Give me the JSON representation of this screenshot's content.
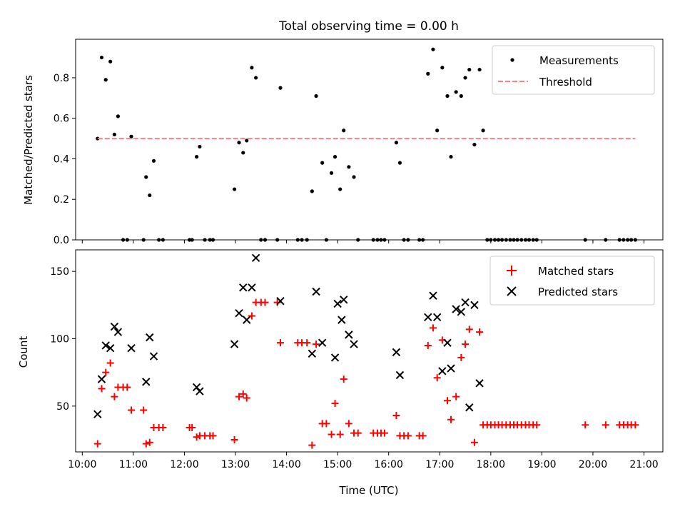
{
  "figure": {
    "title": "Total observing time = 0.00 h",
    "xlabel": "Time (UTC)",
    "xticks": [
      "10:00",
      "11:00",
      "12:00",
      "13:00",
      "14:00",
      "15:00",
      "16:00",
      "17:00",
      "18:00",
      "19:00",
      "20:00",
      "21:00"
    ]
  },
  "chart_data": [
    {
      "type": "scatter",
      "ylabel": "Matched/Predicted stars",
      "ylim": [
        0,
        0.99
      ],
      "yticks": [
        0.0,
        0.2,
        0.4,
        0.6,
        0.8
      ],
      "xlim_hours": [
        9.87,
        21.37
      ],
      "grid": false,
      "legend_position": "top-right",
      "series": [
        {
          "name": "Measurements",
          "kind": "points",
          "color": "#000000",
          "x": [
            10.3,
            10.38,
            10.46,
            10.55,
            10.63,
            10.7,
            10.8,
            10.88,
            10.96,
            11.2,
            11.25,
            11.32,
            11.4,
            11.5,
            11.58,
            12.1,
            12.15,
            12.24,
            12.3,
            12.4,
            12.5,
            12.56,
            12.98,
            13.07,
            13.15,
            13.22,
            13.32,
            13.4,
            13.5,
            13.58,
            13.82,
            13.88,
            14.22,
            14.3,
            14.4,
            14.5,
            14.58,
            14.7,
            14.78,
            14.88,
            14.95,
            15.05,
            15.12,
            15.22,
            15.32,
            15.4,
            15.7,
            15.78,
            15.85,
            15.92,
            16.15,
            16.22,
            16.3,
            16.38,
            16.6,
            16.67,
            16.77,
            16.87,
            16.95,
            17.05,
            17.15,
            17.22,
            17.32,
            17.42,
            17.5,
            17.58,
            17.68,
            17.78,
            17.85,
            17.93,
            18.0,
            18.08,
            18.15,
            18.22,
            18.3,
            18.38,
            18.45,
            18.52,
            18.6,
            18.68,
            18.75,
            18.83,
            18.9,
            19.85,
            20.25,
            20.52,
            20.6,
            20.68,
            20.75,
            20.83
          ],
          "y": [
            0.5,
            0.9,
            0.79,
            0.88,
            0.52,
            0.61,
            0,
            0,
            0.51,
            0,
            0.31,
            0.22,
            0.39,
            0,
            0,
            0,
            0,
            0.41,
            0.46,
            0,
            0,
            0,
            0.25,
            0.48,
            0.43,
            0.49,
            0.85,
            0.8,
            0,
            0,
            0,
            0.75,
            0,
            0,
            0,
            0.24,
            0.71,
            0.38,
            0,
            0.33,
            0.41,
            0.25,
            0.54,
            0.36,
            0.31,
            0,
            0,
            0,
            0,
            0,
            0.48,
            0.38,
            0,
            0,
            0,
            0,
            0.82,
            0.94,
            0.54,
            0.85,
            0.71,
            0.41,
            0.73,
            0.71,
            0.8,
            0.84,
            0.47,
            0.84,
            0.54,
            0,
            0,
            0,
            0,
            0,
            0,
            0,
            0,
            0,
            0,
            0,
            0,
            0,
            0,
            0,
            0,
            0,
            0,
            0,
            0,
            0
          ]
        },
        {
          "name": "Threshold",
          "kind": "dashed-line",
          "color": "#ff8080",
          "x": [
            10.3,
            20.83
          ],
          "y": [
            0.5,
            0.5
          ]
        }
      ]
    },
    {
      "type": "scatter",
      "ylabel": "Count",
      "ylim": [
        16,
        166
      ],
      "yticks": [
        50,
        100,
        150
      ],
      "xlim_hours": [
        9.87,
        21.37
      ],
      "grid": false,
      "legend_position": "top-right",
      "series": [
        {
          "name": "Matched stars",
          "kind": "plus",
          "color": "#ff0000",
          "x": [
            10.3,
            10.38,
            10.46,
            10.55,
            10.63,
            10.7,
            10.8,
            10.88,
            10.96,
            11.2,
            11.25,
            11.32,
            11.4,
            11.5,
            11.58,
            12.1,
            12.15,
            12.24,
            12.3,
            12.4,
            12.5,
            12.56,
            12.98,
            13.07,
            13.15,
            13.22,
            13.32,
            13.4,
            13.5,
            13.58,
            13.82,
            13.88,
            14.22,
            14.3,
            14.4,
            14.5,
            14.58,
            14.7,
            14.78,
            14.88,
            14.95,
            15.05,
            15.12,
            15.22,
            15.32,
            15.4,
            15.7,
            15.78,
            15.85,
            15.92,
            16.15,
            16.22,
            16.3,
            16.38,
            16.6,
            16.67,
            16.77,
            16.87,
            16.95,
            17.05,
            17.15,
            17.22,
            17.32,
            17.42,
            17.5,
            17.58,
            17.68,
            17.78,
            17.85,
            17.93,
            18.0,
            18.08,
            18.15,
            18.22,
            18.3,
            18.38,
            18.45,
            18.52,
            18.6,
            18.68,
            18.75,
            18.83,
            18.9,
            19.85,
            20.25,
            20.52,
            20.6,
            20.68,
            20.75,
            20.83
          ],
          "y": [
            22,
            63,
            75,
            82,
            57,
            64,
            64,
            64,
            47,
            47,
            22,
            23,
            34,
            34,
            34,
            34,
            34,
            27,
            28,
            28,
            28,
            28,
            25,
            57,
            59,
            56,
            117,
            127,
            127,
            127,
            127,
            97,
            97,
            97,
            97,
            21,
            96,
            37,
            37,
            29,
            52,
            29,
            70,
            37,
            30,
            30,
            30,
            30,
            30,
            30,
            43,
            28,
            28,
            28,
            28,
            28,
            95,
            108,
            71,
            99,
            54,
            40,
            57,
            86,
            96,
            107,
            23,
            105,
            36,
            36,
            36,
            36,
            36,
            36,
            36,
            36,
            36,
            36,
            36,
            36,
            36,
            36,
            36,
            36,
            36,
            36,
            36,
            36,
            36,
            36
          ]
        },
        {
          "name": "Predicted stars",
          "kind": "x",
          "color": "#000000",
          "x": [
            10.3,
            10.38,
            10.46,
            10.55,
            10.63,
            10.7,
            10.96,
            11.25,
            11.32,
            11.4,
            12.24,
            12.3,
            12.98,
            13.07,
            13.15,
            13.22,
            13.32,
            13.4,
            13.88,
            14.5,
            14.58,
            14.7,
            14.95,
            15.0,
            15.08,
            15.12,
            15.22,
            15.32,
            16.15,
            16.22,
            16.77,
            16.87,
            16.95,
            17.05,
            17.15,
            17.22,
            17.32,
            17.42,
            17.5,
            17.58,
            17.68,
            17.78
          ],
          "y": [
            44,
            70,
            95,
            93,
            109,
            105,
            93,
            68,
            101,
            87,
            64,
            61,
            96,
            119,
            138,
            114,
            138,
            160,
            128,
            89,
            135,
            97,
            86,
            126,
            114,
            129,
            103,
            96,
            90,
            73,
            116,
            132,
            116,
            76,
            97,
            78,
            122,
            120,
            127,
            49,
            125,
            67
          ]
        }
      ]
    }
  ]
}
